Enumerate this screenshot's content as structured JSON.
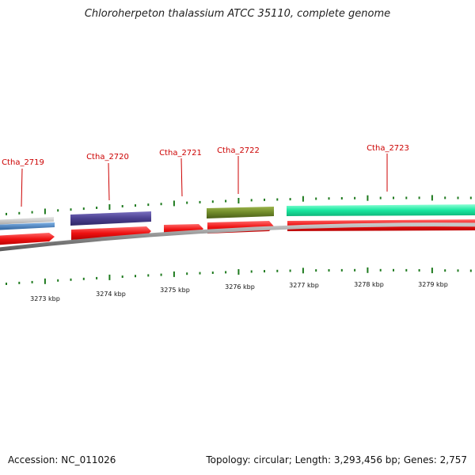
{
  "title": "Chloroherpeton thalassium ATCC 35110, complete genome",
  "accession_text": "Accession: NC_011026",
  "summary_text": "Topology: circular; Length: 3,293,456 bp; Genes: 2,757",
  "colors": {
    "gene_label": "#cc0000",
    "cds_arrow": "#ee1111",
    "tick": "#1e7a1e",
    "backbone": "#8a8a8a",
    "feature_2719a": "#c4c4c4",
    "feature_2719b": "#3f7fc0",
    "feature_2720": "#4a3f8f",
    "feature_2722": "#6f8a2a",
    "feature_2723": "#19e8a0"
  },
  "genes": [
    {
      "id": "g2719",
      "label": "Ctha_2719"
    },
    {
      "id": "g2720",
      "label": "Ctha_2720"
    },
    {
      "id": "g2721",
      "label": "Ctha_2721"
    },
    {
      "id": "g2722",
      "label": "Ctha_2722"
    },
    {
      "id": "g2723",
      "label": "Ctha_2723"
    }
  ],
  "kbp_labels": [
    "3273 kbp",
    "3274 kbp",
    "3275 kbp",
    "3276 kbp",
    "3277 kbp",
    "3278 kbp",
    "3279 kbp"
  ]
}
